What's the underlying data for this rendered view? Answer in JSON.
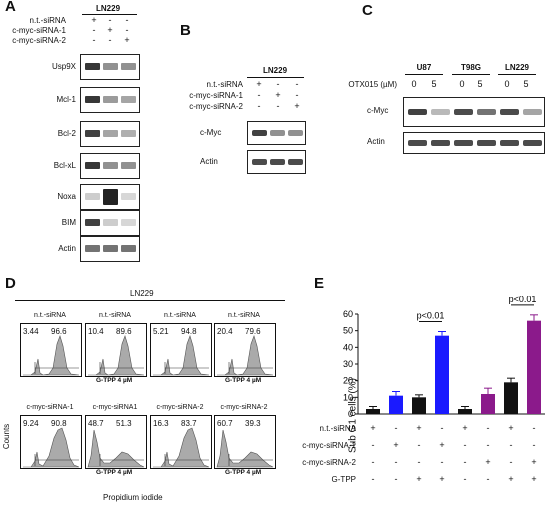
{
  "panels": {
    "A": {
      "letter": "A",
      "cell_line": "LN229",
      "conditions": [
        {
          "label": "n.t.-siRNA",
          "signs": [
            "+",
            "-",
            "-"
          ]
        },
        {
          "label": "c-myc-siRNA-1",
          "signs": [
            "-",
            "+",
            "-"
          ]
        },
        {
          "label": "c-myc-siRNA-2",
          "signs": [
            "-",
            "-",
            "+"
          ]
        }
      ],
      "rows": [
        {
          "label": "Usp9X",
          "bands": [
            0.9,
            0.45,
            0.45
          ]
        },
        {
          "label": "Mcl-1",
          "bands": [
            0.9,
            0.4,
            0.35
          ]
        },
        {
          "label": "Bcl-2",
          "bands": [
            0.85,
            0.35,
            0.3
          ]
        },
        {
          "label": "Bcl-xL",
          "bands": [
            0.9,
            0.45,
            0.45
          ]
        },
        {
          "label": "Noxa",
          "bands": [
            0.15,
            1.0,
            0.1
          ]
        },
        {
          "label": "BIM",
          "bands": [
            0.85,
            0.15,
            0.1
          ]
        },
        {
          "label": "Actin",
          "bands": [
            0.6,
            0.6,
            0.6
          ]
        }
      ]
    },
    "B": {
      "letter": "B",
      "cell_line": "LN229",
      "conditions": [
        {
          "label": "n.t.-siRNA",
          "signs": [
            "+",
            "-",
            "-"
          ]
        },
        {
          "label": "c-myc-siRNA-1",
          "signs": [
            "-",
            "+",
            "-"
          ]
        },
        {
          "label": "c-myc-siRNA-2",
          "signs": [
            "-",
            "-",
            "+"
          ]
        }
      ],
      "rows": [
        {
          "label": "c-Myc",
          "bands": [
            0.85,
            0.45,
            0.45
          ]
        },
        {
          "label": "Actin",
          "bands": [
            0.8,
            0.8,
            0.8
          ]
        }
      ]
    },
    "C": {
      "letter": "C",
      "cell_lines": [
        "U87",
        "T98G",
        "LN229"
      ],
      "treatment_label": "OTX015 (µM)",
      "doses": [
        "0",
        "5",
        "0",
        "5",
        "0",
        "5"
      ],
      "rows": [
        {
          "label": "c-Myc",
          "bands": [
            0.85,
            0.25,
            0.8,
            0.6,
            0.8,
            0.35
          ]
        },
        {
          "label": "Actin",
          "bands": [
            0.8,
            0.8,
            0.8,
            0.8,
            0.8,
            0.8
          ]
        }
      ]
    },
    "D": {
      "letter": "D",
      "cell_line": "LN229",
      "ylabel": "Counts",
      "xlabel": "Propidium iodide",
      "gtpp_label": "G-TPP 4 µM",
      "histograms": [
        {
          "title": "n.t.-siRNA",
          "left": "3.44",
          "right": "96.6",
          "gtpp": false,
          "shape": "single"
        },
        {
          "title": "n.t.-siRNA",
          "left": "10.4",
          "right": "89.6",
          "gtpp": true,
          "shape": "single"
        },
        {
          "title": "n.t.-siRNA",
          "left": "5.21",
          "right": "94.8",
          "gtpp": false,
          "shape": "single"
        },
        {
          "title": "n.t.-siRNA",
          "left": "20.4",
          "right": "79.6",
          "gtpp": true,
          "shape": "single"
        },
        {
          "title": "c-myc-siRNA-1",
          "left": "9.24",
          "right": "90.8",
          "gtpp": false,
          "shape": "broad"
        },
        {
          "title": "c-myc-siRNA1",
          "left": "48.7",
          "right": "51.3",
          "gtpp": true,
          "shape": "left"
        },
        {
          "title": "c-myc-siRNA-2",
          "left": "16.3",
          "right": "83.7",
          "gtpp": false,
          "shape": "broad"
        },
        {
          "title": "c-myc-siRNA-2",
          "left": "60.7",
          "right": "39.3",
          "gtpp": true,
          "shape": "left"
        }
      ]
    },
    "E": {
      "letter": "E"
    }
  },
  "chart_data": {
    "type": "bar",
    "ylabel": "Sub G1 cells (%)",
    "ylim": [
      0,
      60
    ],
    "yticks": [
      0,
      10,
      20,
      30,
      40,
      50,
      60
    ],
    "values": [
      3,
      11,
      10,
      47,
      3,
      12,
      19,
      56
    ],
    "errors": [
      1.5,
      2.5,
      1.5,
      2.5,
      1.5,
      3.5,
      2.5,
      3.5
    ],
    "colors": [
      "#111111",
      "#1a1aff",
      "#111111",
      "#1a1aff",
      "#111111",
      "#8b1a8b",
      "#111111",
      "#8b1a8b"
    ],
    "row_labels": [
      "n.t.-siRNA",
      "c-myc-siRNA-1",
      "c-myc-siRNA-2",
      "G-TPP"
    ],
    "row_signs": [
      [
        "+",
        "-",
        "+",
        "-",
        "+",
        "-",
        "+",
        "-"
      ],
      [
        "-",
        "+",
        "-",
        "+",
        "-",
        "-",
        "-",
        "-"
      ],
      [
        "-",
        "-",
        "-",
        "-",
        "-",
        "+",
        "-",
        "+"
      ],
      [
        "-",
        "-",
        "+",
        "+",
        "-",
        "-",
        "+",
        "+"
      ]
    ],
    "annotations": [
      {
        "text": "p<0.01",
        "from": 2,
        "to": 3
      },
      {
        "text": "p<0.01",
        "from": 6,
        "to": 7
      }
    ]
  }
}
